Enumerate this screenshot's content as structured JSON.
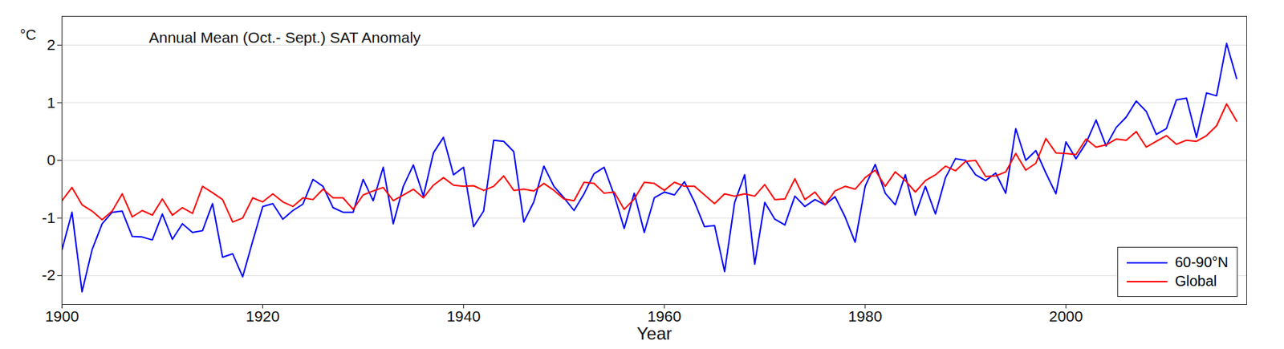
{
  "chart_data": {
    "type": "line",
    "annotation": "Annual Mean (Oct.- Sept.) SAT Anomaly",
    "xlabel": "Year",
    "ylabel": "°C",
    "x": [
      1900,
      1901,
      1902,
      1903,
      1904,
      1905,
      1906,
      1907,
      1908,
      1909,
      1910,
      1911,
      1912,
      1913,
      1914,
      1915,
      1916,
      1917,
      1918,
      1919,
      1920,
      1921,
      1922,
      1923,
      1924,
      1925,
      1926,
      1927,
      1928,
      1929,
      1930,
      1931,
      1932,
      1933,
      1934,
      1935,
      1936,
      1937,
      1938,
      1939,
      1940,
      1941,
      1942,
      1943,
      1944,
      1945,
      1946,
      1947,
      1948,
      1949,
      1950,
      1951,
      1952,
      1953,
      1954,
      1955,
      1956,
      1957,
      1958,
      1959,
      1960,
      1961,
      1962,
      1963,
      1964,
      1965,
      1966,
      1967,
      1968,
      1969,
      1970,
      1971,
      1972,
      1973,
      1974,
      1975,
      1976,
      1977,
      1978,
      1979,
      1980,
      1981,
      1982,
      1983,
      1984,
      1985,
      1986,
      1987,
      1988,
      1989,
      1990,
      1991,
      1992,
      1993,
      1994,
      1995,
      1996,
      1997,
      1998,
      1999,
      2000,
      2001,
      2002,
      2003,
      2004,
      2005,
      2006,
      2007,
      2008,
      2009,
      2010,
      2011,
      2012,
      2013,
      2014,
      2015,
      2016,
      2017
    ],
    "series": [
      {
        "name": "60-90°N",
        "color": "#0000ff",
        "values": [
          -1.55,
          -0.9,
          -2.28,
          -1.55,
          -1.1,
          -0.9,
          -0.88,
          -1.32,
          -1.33,
          -1.38,
          -0.93,
          -1.37,
          -1.1,
          -1.25,
          -1.22,
          -0.75,
          -1.68,
          -1.62,
          -2.02,
          -1.4,
          -0.8,
          -0.75,
          -1.02,
          -0.87,
          -0.76,
          -0.33,
          -0.45,
          -0.82,
          -0.9,
          -0.9,
          -0.33,
          -0.7,
          -0.12,
          -1.1,
          -0.45,
          -0.08,
          -0.62,
          0.13,
          0.4,
          -0.25,
          -0.12,
          -1.15,
          -0.88,
          0.35,
          0.33,
          0.15,
          -1.07,
          -0.72,
          -0.1,
          -0.45,
          -0.65,
          -0.87,
          -0.58,
          -0.23,
          -0.12,
          -0.6,
          -1.18,
          -0.57,
          -1.25,
          -0.65,
          -0.55,
          -0.6,
          -0.37,
          -0.72,
          -1.15,
          -1.13,
          -1.93,
          -0.73,
          -0.25,
          -1.8,
          -0.73,
          -1.02,
          -1.12,
          -0.62,
          -0.8,
          -0.68,
          -0.77,
          -0.63,
          -0.98,
          -1.42,
          -0.45,
          -0.07,
          -0.57,
          -0.77,
          -0.25,
          -0.95,
          -0.45,
          -0.93,
          -0.3,
          0.03,
          0.0,
          -0.25,
          -0.35,
          -0.22,
          -0.57,
          0.55,
          0.0,
          0.17,
          -0.22,
          -0.58,
          0.32,
          0.03,
          0.3,
          0.7,
          0.25,
          0.57,
          0.75,
          1.03,
          0.85,
          0.45,
          0.55,
          1.05,
          1.08,
          0.4,
          1.17,
          1.12,
          2.03,
          1.42
        ]
      },
      {
        "name": "Global",
        "color": "#ff0000",
        "values": [
          -0.7,
          -0.47,
          -0.77,
          -0.88,
          -1.03,
          -0.88,
          -0.58,
          -0.98,
          -0.87,
          -0.95,
          -0.67,
          -0.95,
          -0.82,
          -0.92,
          -0.45,
          -0.56,
          -0.68,
          -1.07,
          -1.0,
          -0.65,
          -0.72,
          -0.58,
          -0.72,
          -0.8,
          -0.65,
          -0.68,
          -0.5,
          -0.65,
          -0.65,
          -0.85,
          -0.6,
          -0.53,
          -0.47,
          -0.7,
          -0.6,
          -0.5,
          -0.65,
          -0.43,
          -0.3,
          -0.43,
          -0.45,
          -0.44,
          -0.52,
          -0.45,
          -0.27,
          -0.52,
          -0.5,
          -0.53,
          -0.4,
          -0.52,
          -0.67,
          -0.7,
          -0.38,
          -0.4,
          -0.57,
          -0.55,
          -0.85,
          -0.67,
          -0.38,
          -0.4,
          -0.52,
          -0.38,
          -0.45,
          -0.45,
          -0.6,
          -0.75,
          -0.58,
          -0.62,
          -0.58,
          -0.62,
          -0.42,
          -0.68,
          -0.67,
          -0.32,
          -0.68,
          -0.55,
          -0.77,
          -0.53,
          -0.45,
          -0.5,
          -0.3,
          -0.17,
          -0.45,
          -0.2,
          -0.35,
          -0.55,
          -0.35,
          -0.25,
          -0.1,
          -0.18,
          -0.02,
          0.0,
          -0.28,
          -0.27,
          -0.2,
          0.12,
          -0.17,
          -0.05,
          0.38,
          0.13,
          0.12,
          0.1,
          0.37,
          0.23,
          0.27,
          0.37,
          0.35,
          0.5,
          0.23,
          0.33,
          0.43,
          0.28,
          0.35,
          0.33,
          0.43,
          0.6,
          0.98,
          0.68
        ]
      }
    ],
    "xlim": [
      1900,
      2018
    ],
    "xticks": [
      1900,
      1920,
      1940,
      1960,
      1980,
      2000
    ],
    "ylim": [
      -2.5,
      2.5
    ],
    "yticks": [
      -2,
      -1,
      0,
      1,
      2
    ],
    "grid": true,
    "legend": "lower right"
  }
}
